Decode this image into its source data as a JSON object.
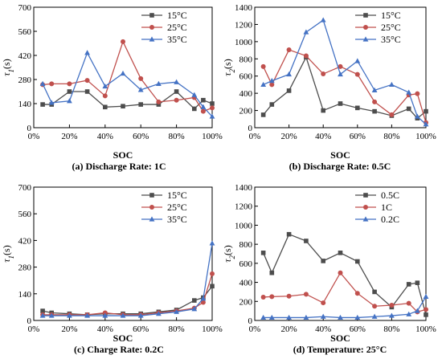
{
  "chart_data": [
    {
      "type": "line",
      "caption": "(a) Discharge Rate: 1C",
      "xlabel": "SOC",
      "ylabel_main": "τ",
      "ylabel_sub": "1",
      "ylabel_unit": "(s)",
      "xlim": [
        0,
        100
      ],
      "ylim": [
        0,
        700
      ],
      "yticks": [
        0,
        140,
        280,
        420,
        560,
        700
      ],
      "xticks": [
        0,
        20,
        40,
        60,
        80,
        100
      ],
      "xtick_labels": [
        "0%",
        "20%",
        "40%",
        "60%",
        "80%",
        "100%"
      ],
      "legend_position": "top-right",
      "series": [
        {
          "name": "15°C",
          "color": "#4d4d4d",
          "marker": "square",
          "x": [
            5,
            10,
            20,
            30,
            40,
            50,
            60,
            70,
            80,
            90,
            95,
            100
          ],
          "y": [
            135,
            135,
            210,
            210,
            120,
            125,
            135,
            135,
            210,
            110,
            160,
            140
          ]
        },
        {
          "name": "25°C",
          "color": "#c0504d",
          "marker": "circle",
          "x": [
            5,
            10,
            20,
            30,
            40,
            50,
            60,
            70,
            80,
            90,
            95,
            100
          ],
          "y": [
            250,
            255,
            255,
            275,
            185,
            500,
            285,
            150,
            160,
            175,
            95,
            115
          ]
        },
        {
          "name": "35°C",
          "color": "#4472c4",
          "marker": "triangle",
          "x": [
            5,
            10,
            20,
            30,
            40,
            50,
            60,
            70,
            80,
            90,
            95,
            100
          ],
          "y": [
            255,
            145,
            155,
            435,
            240,
            315,
            220,
            255,
            265,
            190,
            120,
            65
          ]
        }
      ]
    },
    {
      "type": "line",
      "caption": "(b) Discharge Rate: 0.5C",
      "xlabel": "SOC",
      "ylabel_main": "τ",
      "ylabel_sub": "2",
      "ylabel_unit": "(s)",
      "xlim": [
        0,
        100
      ],
      "ylim": [
        0,
        1400
      ],
      "yticks": [
        0,
        200,
        400,
        600,
        800,
        1000,
        1200,
        1400
      ],
      "xticks": [
        0,
        20,
        40,
        60,
        80,
        100
      ],
      "xtick_labels": [
        "0%",
        "20%",
        "40%",
        "60%",
        "80%",
        "100%"
      ],
      "legend_position": "top-right",
      "series": [
        {
          "name": "15°C",
          "color": "#4d4d4d",
          "marker": "square",
          "x": [
            5,
            10,
            20,
            30,
            40,
            50,
            60,
            70,
            80,
            90,
            95,
            100
          ],
          "y": [
            150,
            270,
            430,
            820,
            200,
            280,
            230,
            190,
            140,
            220,
            110,
            190
          ]
        },
        {
          "name": "25°C",
          "color": "#c0504d",
          "marker": "circle",
          "x": [
            5,
            10,
            20,
            30,
            40,
            50,
            60,
            70,
            80,
            90,
            95,
            100
          ],
          "y": [
            710,
            500,
            905,
            835,
            625,
            710,
            620,
            300,
            150,
            380,
            395,
            60
          ]
        },
        {
          "name": "35°C",
          "color": "#4472c4",
          "marker": "triangle",
          "x": [
            5,
            10,
            20,
            30,
            40,
            50,
            60,
            70,
            80,
            90,
            95,
            100
          ],
          "y": [
            500,
            545,
            620,
            1110,
            1250,
            620,
            775,
            435,
            500,
            410,
            130,
            40
          ]
        }
      ]
    },
    {
      "type": "line",
      "caption": "(c) Charge Rate: 0.2C",
      "xlabel": "SOC",
      "ylabel_main": "τ",
      "ylabel_sub": "1",
      "ylabel_unit": "(s)",
      "xlim": [
        0,
        100
      ],
      "ylim": [
        0,
        700
      ],
      "yticks": [
        0,
        140,
        280,
        420,
        560,
        700
      ],
      "xticks": [
        0,
        20,
        40,
        60,
        80,
        100
      ],
      "xtick_labels": [
        "0%",
        "20%",
        "40%",
        "60%",
        "80%",
        "100%"
      ],
      "legend_position": "top-right",
      "series": [
        {
          "name": "15°C",
          "color": "#4d4d4d",
          "marker": "square",
          "x": [
            5,
            10,
            20,
            30,
            40,
            50,
            60,
            70,
            80,
            90,
            95,
            100
          ],
          "y": [
            50,
            40,
            35,
            30,
            35,
            35,
            35,
            45,
            55,
            105,
            120,
            180
          ]
        },
        {
          "name": "25°C",
          "color": "#c0504d",
          "marker": "circle",
          "x": [
            5,
            10,
            20,
            30,
            40,
            50,
            60,
            70,
            80,
            90,
            95,
            100
          ],
          "y": [
            30,
            30,
            30,
            30,
            40,
            30,
            30,
            40,
            50,
            65,
            95,
            245
          ]
        },
        {
          "name": "35°C",
          "color": "#4472c4",
          "marker": "triangle",
          "x": [
            5,
            10,
            20,
            30,
            40,
            50,
            60,
            70,
            80,
            90,
            95,
            100
          ],
          "y": [
            25,
            25,
            25,
            25,
            25,
            25,
            25,
            35,
            45,
            60,
            115,
            405
          ]
        }
      ]
    },
    {
      "type": "line",
      "caption": "(d) Temperature: 25°C",
      "xlabel": "SOC",
      "ylabel_main": "τ",
      "ylabel_sub": "2",
      "ylabel_unit": "(s)",
      "xlim": [
        0,
        100
      ],
      "ylim": [
        0,
        1400
      ],
      "yticks": [
        0,
        200,
        400,
        600,
        800,
        1000,
        1200,
        1400
      ],
      "xticks": [
        0,
        20,
        40,
        60,
        80,
        100
      ],
      "xtick_labels": [
        "0%",
        "20%",
        "40%",
        "60%",
        "80%",
        "100%"
      ],
      "legend_position": "top-right",
      "series": [
        {
          "name": "0.5C",
          "color": "#4d4d4d",
          "marker": "square",
          "x": [
            5,
            10,
            20,
            30,
            40,
            50,
            60,
            70,
            80,
            90,
            95,
            100
          ],
          "y": [
            710,
            500,
            905,
            835,
            625,
            710,
            620,
            300,
            140,
            380,
            395,
            60
          ]
        },
        {
          "name": "1C",
          "color": "#c0504d",
          "marker": "circle",
          "x": [
            5,
            10,
            20,
            30,
            40,
            50,
            60,
            70,
            80,
            90,
            95,
            100
          ],
          "y": [
            245,
            250,
            255,
            275,
            185,
            500,
            285,
            150,
            160,
            180,
            90,
            115
          ]
        },
        {
          "name": "0.2C",
          "color": "#4472c4",
          "marker": "triangle",
          "x": [
            5,
            10,
            20,
            30,
            40,
            50,
            60,
            70,
            80,
            90,
            95,
            100
          ],
          "y": [
            30,
            30,
            30,
            30,
            40,
            30,
            30,
            40,
            50,
            65,
            100,
            250
          ]
        }
      ]
    }
  ]
}
